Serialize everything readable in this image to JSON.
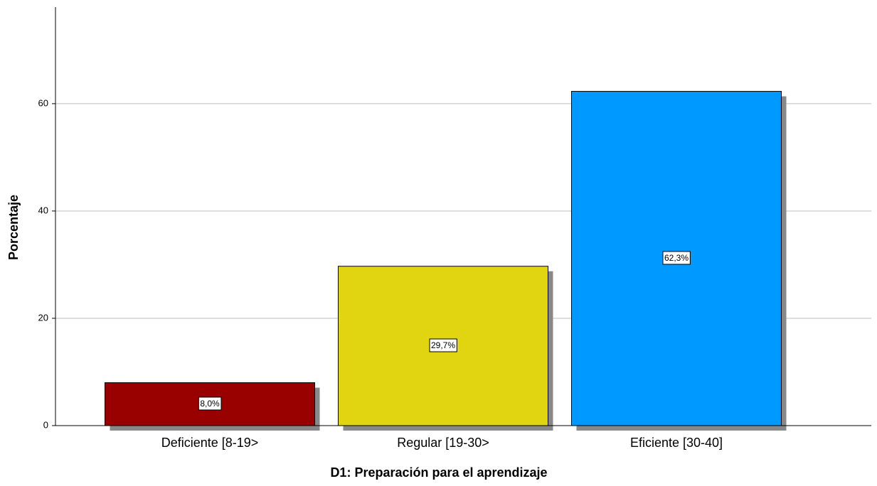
{
  "chart_data": {
    "type": "bar",
    "xlabel": "D1: Preparación para el aprendizaje",
    "ylabel": "Porcentaje",
    "categories": [
      "Deficiente [8-19>",
      "Regular [19-30>",
      "Eficiente [30-40]"
    ],
    "values": [
      8.0,
      29.7,
      62.3
    ],
    "value_labels": [
      "8,0%",
      "29,7%",
      "62,3%"
    ],
    "colors": [
      "#990000",
      "#e1d512",
      "#0099ff"
    ],
    "ylim": [
      0,
      78
    ],
    "yticks": [
      0,
      20,
      40,
      60
    ],
    "grid": true
  }
}
